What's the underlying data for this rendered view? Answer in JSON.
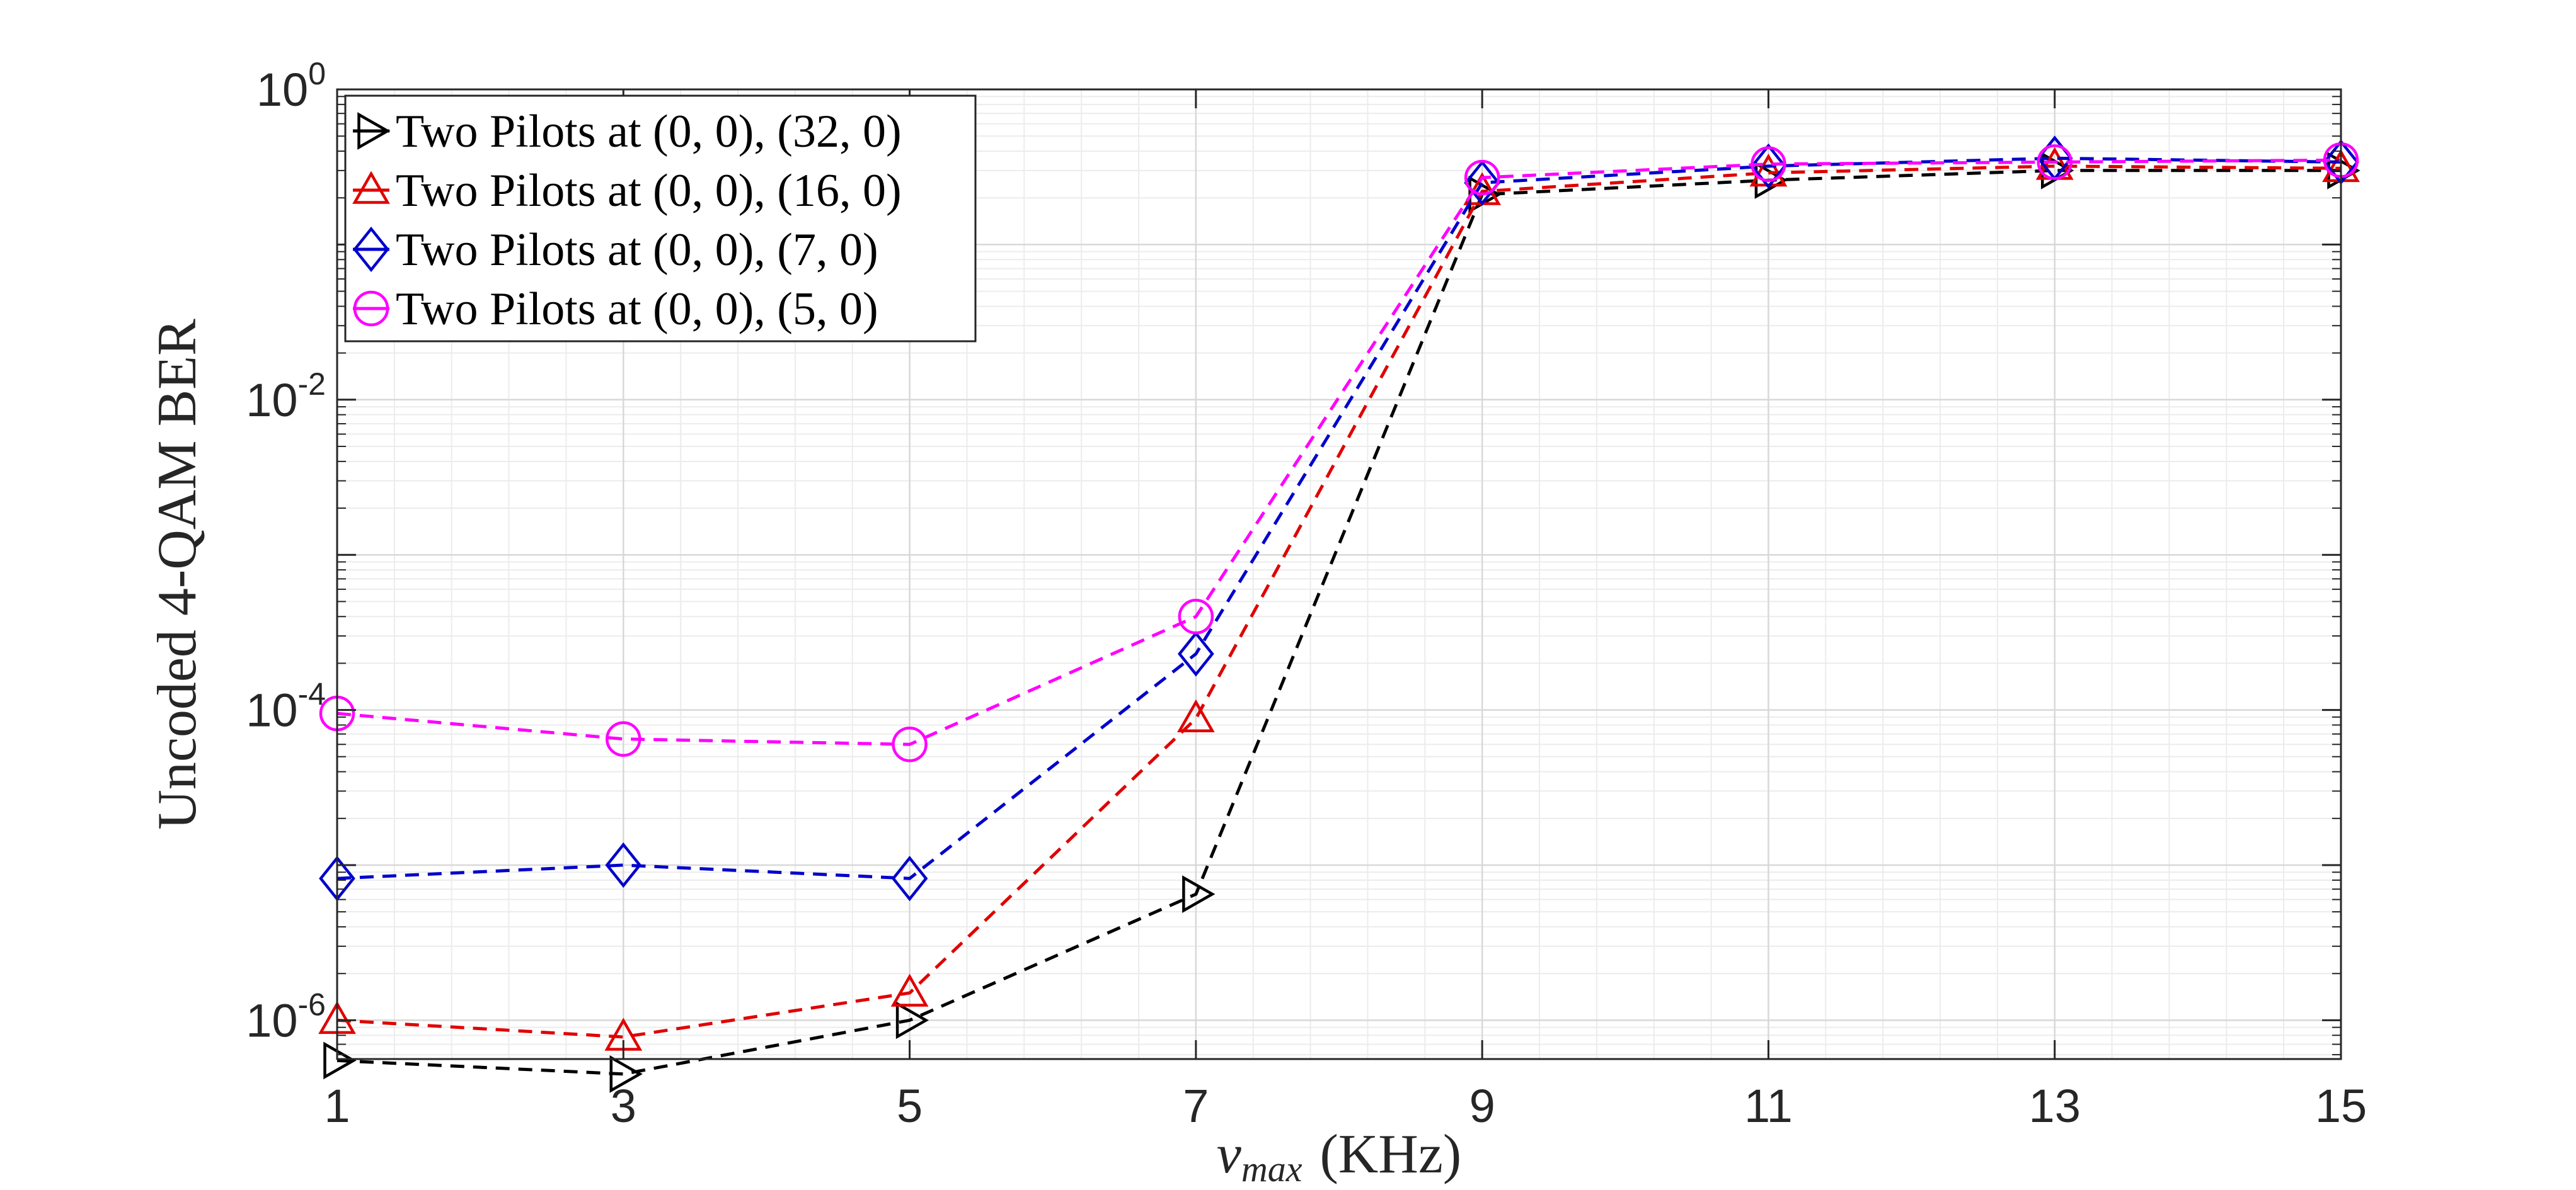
{
  "chart_data": {
    "type": "line",
    "title": "",
    "xlabel_symbol": "ν",
    "xlabel_subscript": "max",
    "xlabel_unit": "(KHz)",
    "ylabel": "Uncoded 4-QAM BER",
    "x": [
      1,
      3,
      5,
      7,
      9,
      11,
      13,
      15
    ],
    "xlim": [
      1,
      15
    ],
    "ylim_exponent": [
      -6.25,
      0
    ],
    "yscale": "log",
    "grid": true,
    "legend_position": "top-left",
    "xticks": [
      1,
      3,
      5,
      7,
      9,
      11,
      13,
      15
    ],
    "yticks": [
      {
        "base": "10",
        "exp": "0",
        "value": 1
      },
      {
        "base": "10",
        "exp": "-2",
        "value": 0.01
      },
      {
        "base": "10",
        "exp": "-4",
        "value": 0.0001
      },
      {
        "base": "10",
        "exp": "-6",
        "value": 1e-06
      }
    ],
    "series": [
      {
        "name": "Two Pilots at (0, 0), (32, 0)",
        "color": "#000000",
        "marker": "triangle-right",
        "values": [
          5.5e-07,
          4.5e-07,
          1e-06,
          6.5e-06,
          0.21,
          0.26,
          0.3,
          0.3
        ]
      },
      {
        "name": "Two Pilots at (0, 0), (16, 0)",
        "color": "#e00000",
        "marker": "triangle-up",
        "values": [
          1e-06,
          7.8e-07,
          1.5e-06,
          8.8e-05,
          0.22,
          0.29,
          0.32,
          0.31
        ]
      },
      {
        "name": "Two Pilots at (0, 0), (7, 0)",
        "color": "#0000cc",
        "marker": "diamond",
        "values": [
          8.2e-06,
          1e-05,
          8.2e-06,
          0.00023,
          0.25,
          0.32,
          0.36,
          0.34
        ]
      },
      {
        "name": "Two Pilots at (0, 0), (5, 0)",
        "color": "#ff00ff",
        "marker": "circle",
        "values": [
          9.5e-05,
          6.5e-05,
          6e-05,
          0.0004,
          0.27,
          0.33,
          0.34,
          0.35
        ]
      }
    ]
  }
}
